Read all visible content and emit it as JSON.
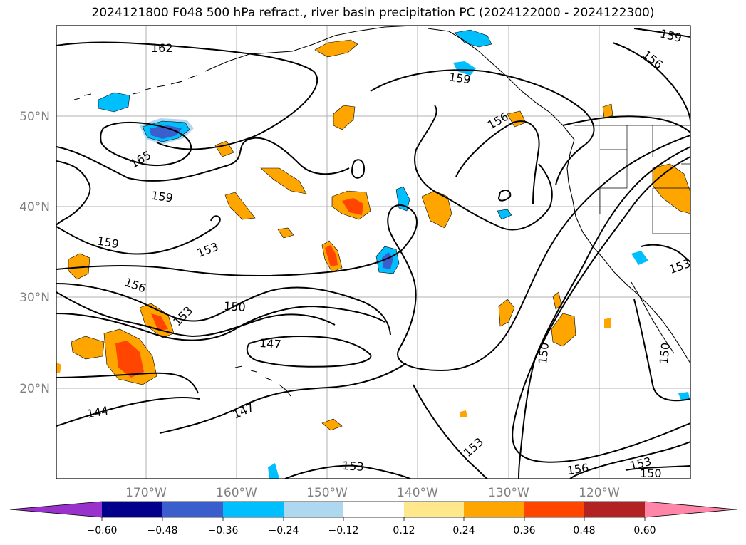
{
  "title": "2024121800 F048 500 hPa refract., river basin precipitation PC (2024122000 - 2024122300)",
  "map": {
    "lon_labels": [
      "170°W",
      "160°W",
      "150°W",
      "140°W",
      "130°W",
      "120°W"
    ],
    "lat_labels": [
      "50°N",
      "40°N",
      "30°N",
      "20°N"
    ],
    "contour_labels": [
      "162",
      "159",
      "156",
      "165",
      "159",
      "159",
      "153",
      "156",
      "153",
      "150",
      "147",
      "144",
      "147",
      "153",
      "150",
      "153",
      "156",
      "153",
      "150",
      "150",
      "153",
      "156",
      "159"
    ]
  },
  "colorbar": {
    "ticks": [
      "−0.60",
      "−0.48",
      "−0.36",
      "−0.24",
      "−0.12",
      "0.12",
      "0.24",
      "0.36",
      "0.48",
      "0.60"
    ],
    "colors": [
      "#9932cc",
      "#00008b",
      "#3a5fcd",
      "#00bfff",
      "#add8f0",
      "#ffffff",
      "#ffe88c",
      "#ffa500",
      "#ff4500",
      "#b22222",
      "#ff86a8"
    ]
  },
  "shading_colors": {
    "pos_light": "#ffe88c",
    "pos_mid": "#ffa500",
    "pos_strong": "#ff4500",
    "neg_light": "#add8f0",
    "neg_mid": "#00bfff",
    "neg_strong": "#3a5fcd"
  }
}
